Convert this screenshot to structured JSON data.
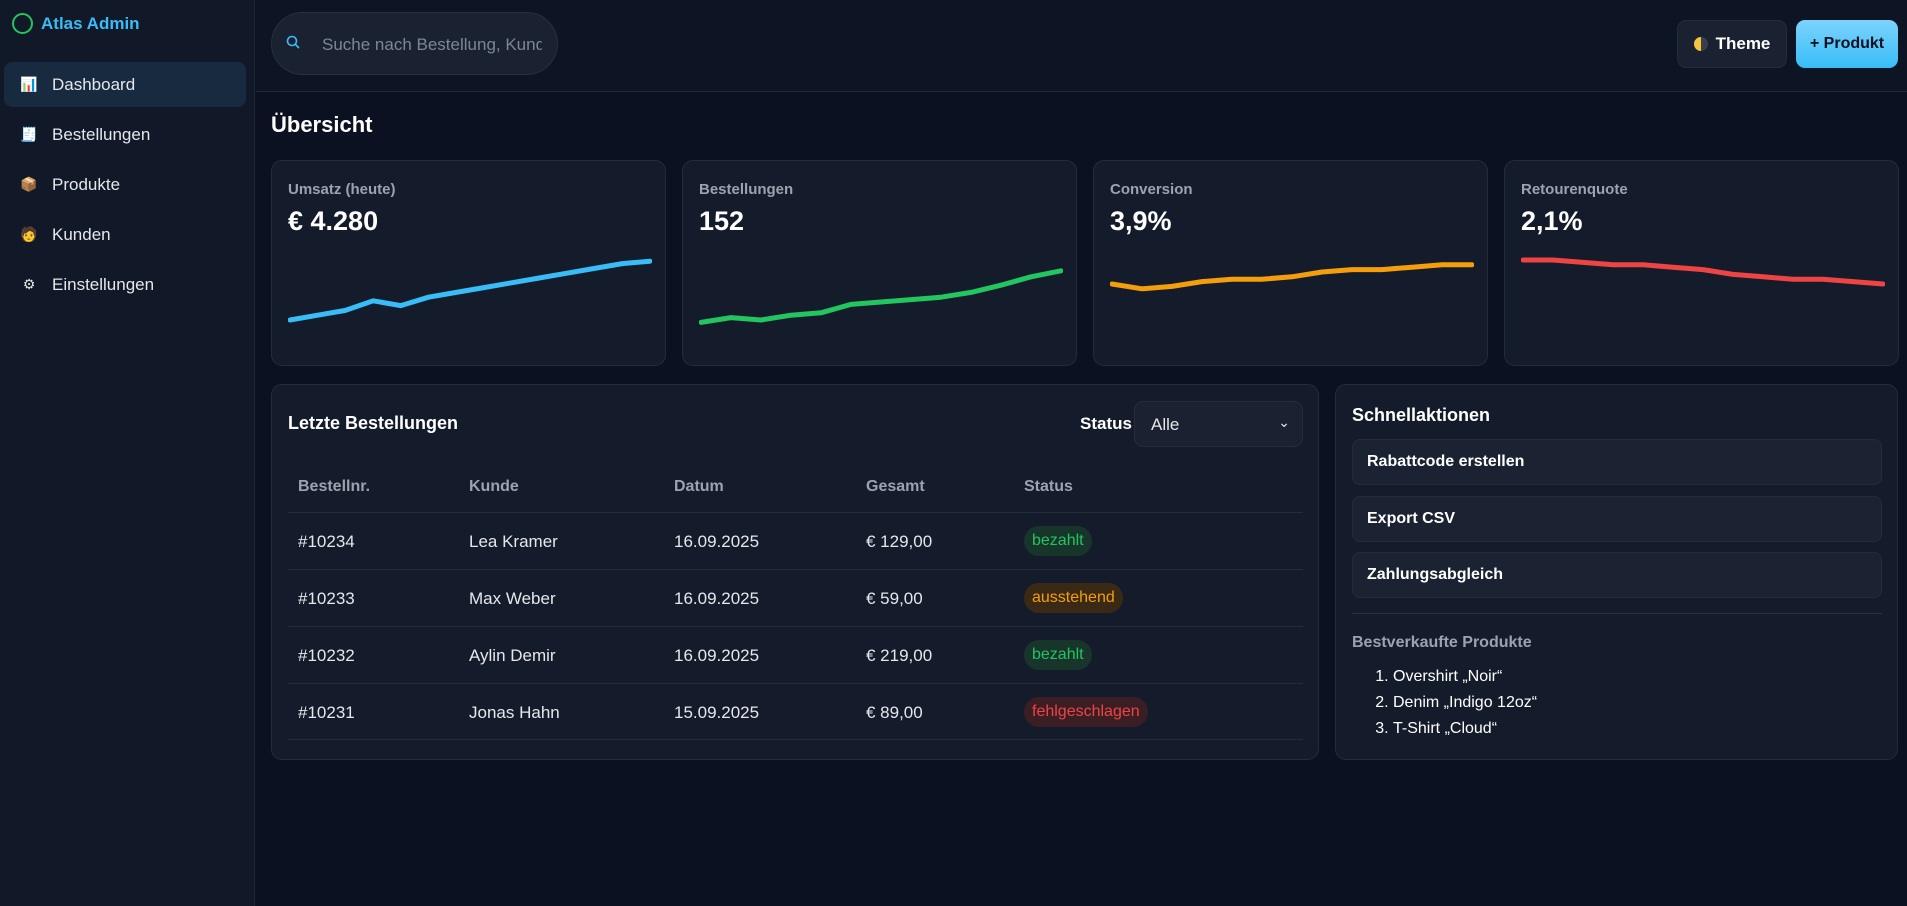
{
  "brand": {
    "name": "Atlas Admin"
  },
  "sidebar": {
    "items": [
      {
        "label": "Dashboard",
        "icon": "📊"
      },
      {
        "label": "Bestellungen",
        "icon": "🧾"
      },
      {
        "label": "Produkte",
        "icon": "📦"
      },
      {
        "label": "Kunden",
        "icon": "🧑"
      },
      {
        "label": "Einstellungen",
        "icon": "⚙"
      }
    ]
  },
  "topbar": {
    "search_placeholder": "Suche nach Bestellung, Kunde",
    "theme_label": "Theme",
    "add_product_label": "+ Produkt"
  },
  "page": {
    "title": "Übersicht"
  },
  "kpis": [
    {
      "label": "Umsatz (heute)",
      "value": "€ 4.280",
      "color": "#38bdf8"
    },
    {
      "label": "Bestellungen",
      "value": "152",
      "color": "#22c55e"
    },
    {
      "label": "Conversion",
      "value": "3,9%",
      "color": "#f59e0b"
    },
    {
      "label": "Retourenquote",
      "value": "2,1%",
      "color": "#ef4444"
    }
  ],
  "chart_data": [
    {
      "type": "line",
      "title": "Umsatz (heute)",
      "values": [
        20,
        24,
        28,
        36,
        32,
        39,
        43,
        47,
        51,
        55,
        59,
        63,
        67,
        69
      ],
      "ylim": [
        0,
        80
      ]
    },
    {
      "type": "line",
      "title": "Bestellungen",
      "values": [
        18,
        22,
        20,
        24,
        26,
        33,
        35,
        37,
        39,
        43,
        49,
        56,
        61
      ],
      "ylim": [
        0,
        80
      ]
    },
    {
      "type": "line",
      "title": "Conversion",
      "values": [
        50,
        46,
        48,
        52,
        54,
        54,
        56,
        60,
        62,
        62,
        64,
        66,
        66
      ],
      "ylim": [
        0,
        80
      ]
    },
    {
      "type": "line",
      "title": "Retourenquote",
      "values": [
        70,
        70,
        68,
        66,
        66,
        64,
        62,
        58,
        56,
        54,
        54,
        52,
        50
      ],
      "ylim": [
        0,
        80
      ]
    }
  ],
  "orders": {
    "title": "Letzte Bestellungen",
    "filter_label": "Status",
    "filter_value": "Alle",
    "columns": [
      "Bestellnr.",
      "Kunde",
      "Datum",
      "Gesamt",
      "Status"
    ],
    "rows": [
      {
        "id": "#10234",
        "customer": "Lea Kramer",
        "date": "16.09.2025",
        "total": "€ 129,00",
        "status": "bezahlt",
        "kind": "paid"
      },
      {
        "id": "#10233",
        "customer": "Max Weber",
        "date": "16.09.2025",
        "total": "€ 59,00",
        "status": "ausstehend",
        "kind": "pending"
      },
      {
        "id": "#10232",
        "customer": "Aylin Demir",
        "date": "16.09.2025",
        "total": "€ 219,00",
        "status": "bezahlt",
        "kind": "paid"
      },
      {
        "id": "#10231",
        "customer": "Jonas Hahn",
        "date": "15.09.2025",
        "total": "€ 89,00",
        "status": "fehlgeschlagen",
        "kind": "failed"
      }
    ]
  },
  "quick": {
    "title": "Schnellaktionen",
    "actions": [
      "Rabattcode erstellen",
      "Export CSV",
      "Zahlungsabgleich"
    ],
    "top_title": "Bestverkaufte Produkte",
    "top_products": [
      "Overshirt „Noir“",
      "Denim „Indigo 12oz“",
      "T-Shirt „Cloud“"
    ]
  }
}
